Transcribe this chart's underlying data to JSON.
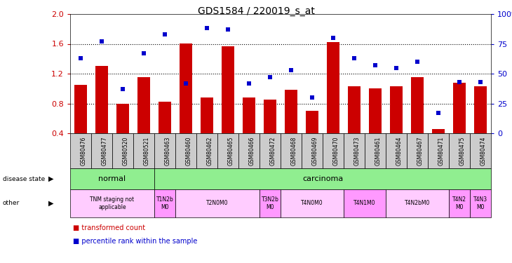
{
  "title": "GDS1584 / 220019_s_at",
  "samples": [
    "GSM80476",
    "GSM80477",
    "GSM80520",
    "GSM80521",
    "GSM80463",
    "GSM80460",
    "GSM80462",
    "GSM80465",
    "GSM80466",
    "GSM80472",
    "GSM80468",
    "GSM80469",
    "GSM80470",
    "GSM80473",
    "GSM80461",
    "GSM80464",
    "GSM80467",
    "GSM80471",
    "GSM80475",
    "GSM80474"
  ],
  "transformed_count": [
    1.05,
    1.3,
    0.8,
    1.15,
    0.82,
    1.6,
    0.88,
    1.57,
    0.88,
    0.85,
    0.98,
    0.7,
    1.62,
    1.03,
    1.0,
    1.03,
    1.15,
    0.46,
    1.08,
    1.03
  ],
  "percentile_rank": [
    63,
    77,
    37,
    67,
    83,
    42,
    88,
    87,
    42,
    47,
    53,
    30,
    80,
    63,
    57,
    55,
    60,
    17,
    43,
    43
  ],
  "bar_color": "#cc0000",
  "dot_color": "#0000cc",
  "ylim_left": [
    0.4,
    2.0
  ],
  "ylim_right": [
    0,
    100
  ],
  "yticks_left": [
    0.4,
    0.8,
    1.2,
    1.6,
    2.0
  ],
  "yticks_right": [
    0,
    25,
    50,
    75,
    100
  ],
  "ytick_labels_right": [
    "0",
    "25",
    "50",
    "75",
    "100%"
  ],
  "hlines": [
    0.8,
    1.2,
    1.6
  ],
  "disease_state_groups": [
    {
      "label": "normal",
      "start": 0,
      "end": 4,
      "color": "#90ee90"
    },
    {
      "label": "carcinoma",
      "start": 4,
      "end": 20,
      "color": "#90ee90"
    }
  ],
  "other_groups": [
    {
      "label": "TNM staging not\napplicable",
      "start": 0,
      "end": 4,
      "color": "#ffccff"
    },
    {
      "label": "T1N2b\nM0",
      "start": 4,
      "end": 5,
      "color": "#ff99ff"
    },
    {
      "label": "T2N0M0",
      "start": 5,
      "end": 9,
      "color": "#ffccff"
    },
    {
      "label": "T3N2b\nM0",
      "start": 9,
      "end": 10,
      "color": "#ff99ff"
    },
    {
      "label": "T4N0M0",
      "start": 10,
      "end": 13,
      "color": "#ffccff"
    },
    {
      "label": "T4N1M0",
      "start": 13,
      "end": 15,
      "color": "#ff99ff"
    },
    {
      "label": "T4N2bM0",
      "start": 15,
      "end": 18,
      "color": "#ffccff"
    },
    {
      "label": "T4N2\nM0",
      "start": 18,
      "end": 19,
      "color": "#ff99ff"
    },
    {
      "label": "T4N3\nM0",
      "start": 19,
      "end": 20,
      "color": "#ff99ff"
    }
  ],
  "left_axis_color": "#cc0000",
  "right_axis_color": "#0000cc",
  "sample_box_color": "#cccccc",
  "plot_bg_color": "#ffffff",
  "fig_bg_color": "#ffffff"
}
